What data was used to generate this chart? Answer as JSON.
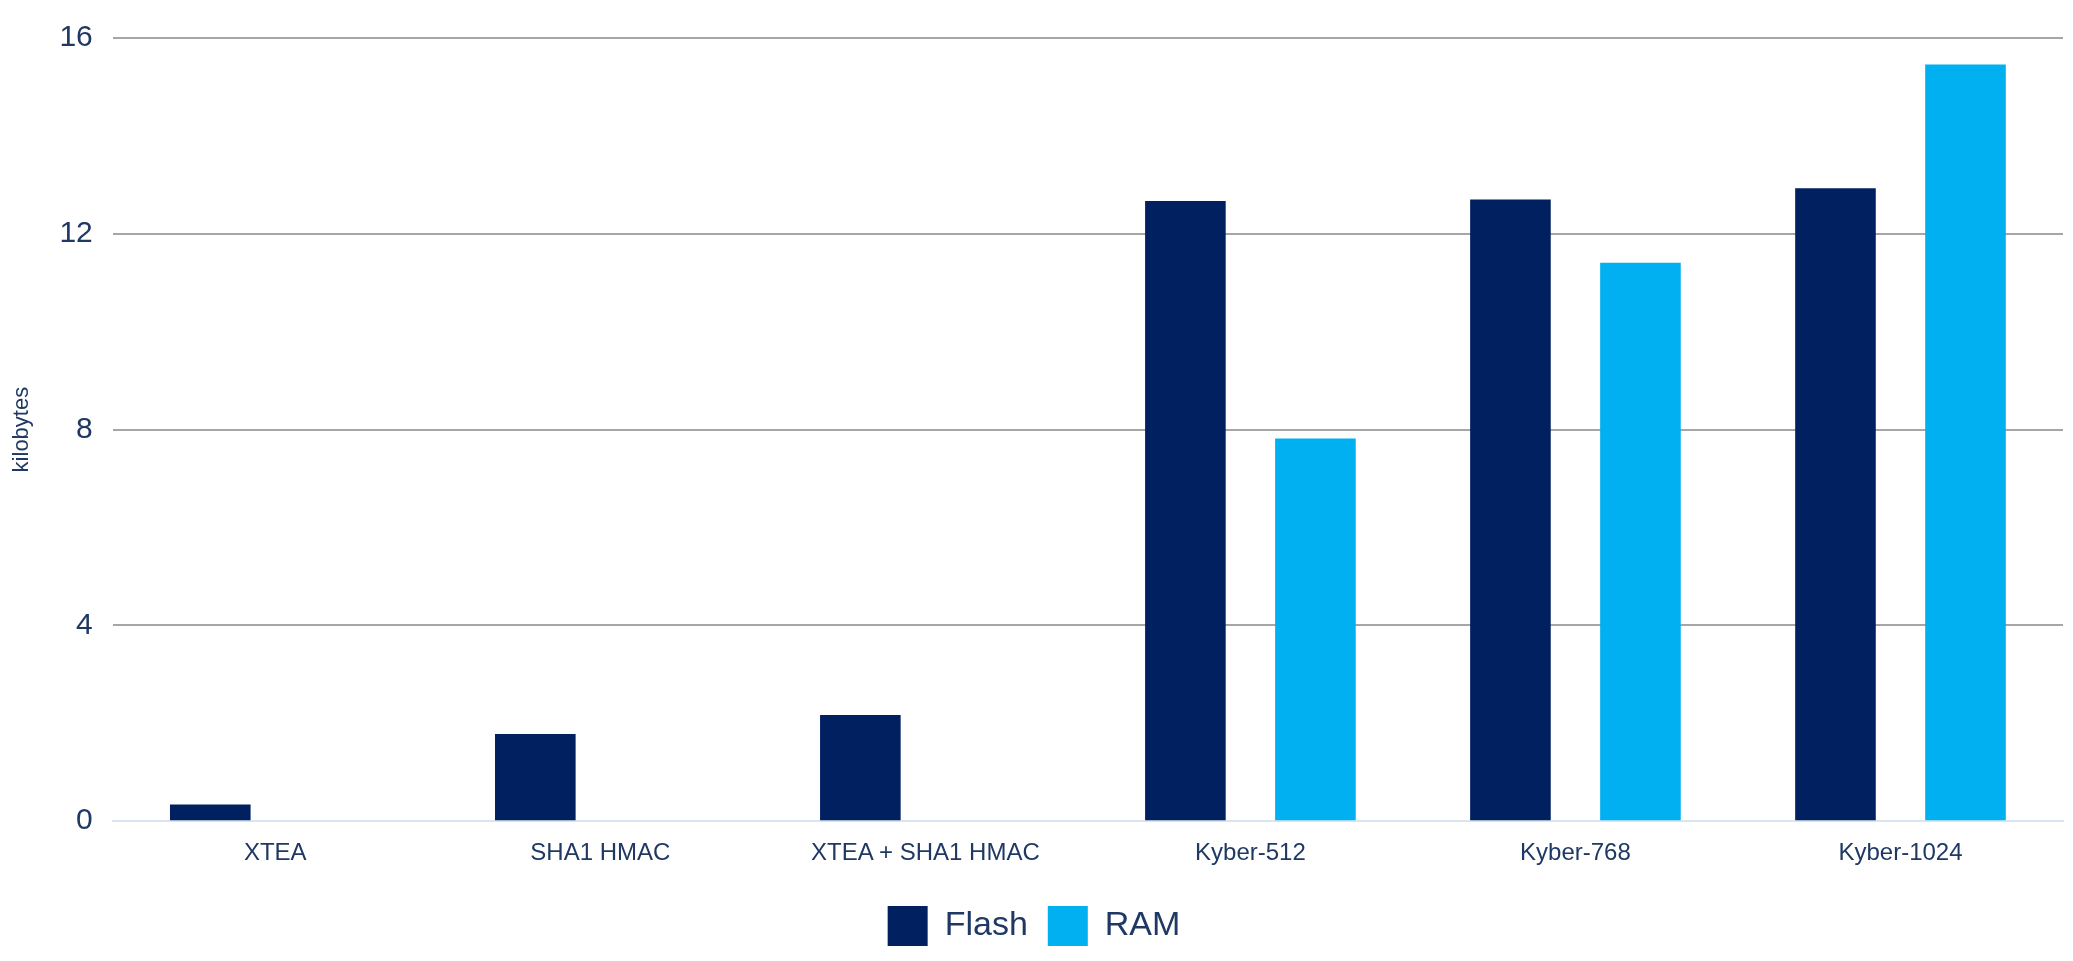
{
  "chart_data": {
    "type": "bar",
    "ylabel": "kilobytes",
    "categories": [
      "XTEA",
      "SHA1 HMAC",
      "XTEA + SHA1 HMAC",
      "Kyber-512",
      "Kyber-768",
      "Kyber-1024"
    ],
    "series": [
      {
        "name": "Flash",
        "color": "#002060",
        "values": [
          0.34,
          1.78,
          2.17,
          12.67,
          12.7,
          12.93
        ]
      },
      {
        "name": "RAM",
        "color": "#00b0f0",
        "values": [
          null,
          null,
          null,
          7.82,
          11.41,
          15.46
        ]
      }
    ],
    "ylim": [
      0,
      16
    ],
    "yticks": [
      0,
      4,
      8,
      12,
      16
    ],
    "grid": "y",
    "legend": "bottom"
  }
}
